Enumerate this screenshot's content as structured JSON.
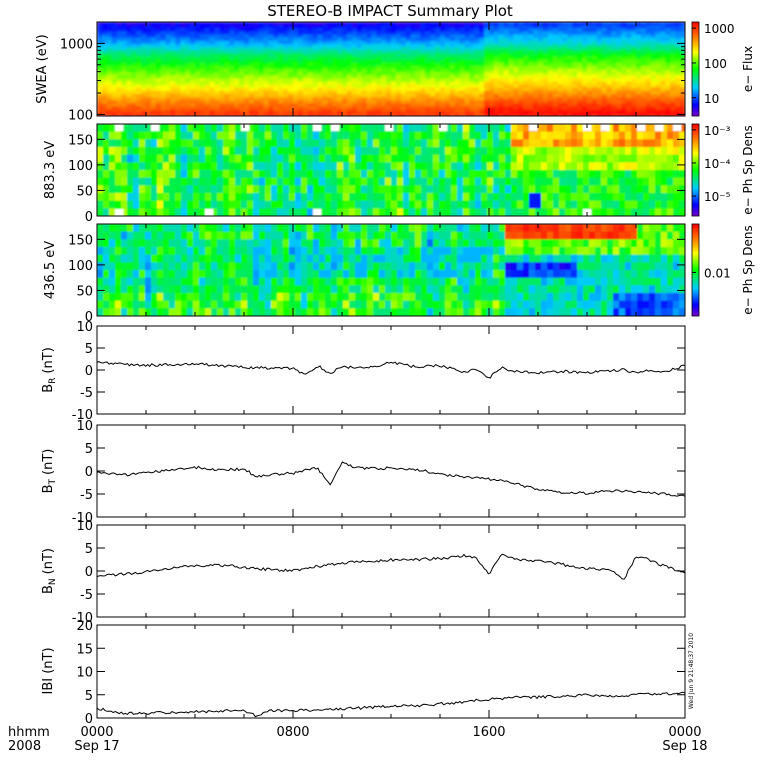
{
  "title": "STEREO-B IMPACT Summary Plot",
  "timestamp": "Wed Jun 9 21:48:37 2010",
  "x_axis": {
    "row1_label": "hhmm",
    "row2_label": "2008",
    "ticks": [
      {
        "hhmm": 0,
        "label": "0000",
        "date": "Sep 17"
      },
      {
        "hhmm": 800,
        "label": "0800",
        "date": ""
      },
      {
        "hhmm": 1600,
        "label": "1600",
        "date": ""
      },
      {
        "hhmm": 2400,
        "label": "0000",
        "date": "Sep 18"
      }
    ]
  },
  "panels": {
    "swea": {
      "ylabel": "SWEA (eV)",
      "ytick_labels": [
        "1000",
        "100"
      ],
      "colorbar_label": "e− Flux",
      "colorbar_ticks": [
        "1000",
        "100",
        "10"
      ]
    },
    "pad883": {
      "ylabel": "883.3 eV",
      "ytick_labels": [
        "150",
        "100",
        "50",
        "0"
      ],
      "colorbar_label": "e− Ph Sp Dens",
      "colorbar_ticks": [
        "10⁻³",
        "10⁻⁴",
        "10⁻⁵"
      ]
    },
    "pad436": {
      "ylabel": "436.5 eV",
      "ytick_labels": [
        "150",
        "100",
        "50",
        "0"
      ],
      "colorbar_label": "e− Ph Sp Dens",
      "colorbar_ticks": [
        "0.01"
      ]
    },
    "br": {
      "ylabel": "B",
      "sub": "R",
      "unit": "(nT)"
    },
    "bt": {
      "ylabel": "B",
      "sub": "T",
      "unit": "(nT)"
    },
    "bn": {
      "ylabel": "B",
      "sub": "N",
      "unit": "(nT)"
    },
    "bmag": {
      "ylabel": "IBI (nT)"
    }
  },
  "chart_data": [
    {
      "type": "heatmap",
      "name": "SWEA e− Flux",
      "y_scale": "log",
      "ylim": [
        95,
        2000
      ],
      "colorbar_scale": "log",
      "colorbar_range": [
        3,
        1500
      ],
      "energy_profile_log10_flux": [
        [
          100,
          3.0
        ],
        [
          150,
          2.7
        ],
        [
          250,
          2.3
        ],
        [
          400,
          2.0
        ],
        [
          700,
          1.6
        ],
        [
          1000,
          1.2
        ],
        [
          1500,
          0.9
        ],
        [
          2000,
          0.7
        ]
      ]
    },
    {
      "type": "heatmap",
      "name": "883.3 eV pitch-angle e− Ph Sp Dens",
      "ylim": [
        0,
        180
      ],
      "y_ticks": [
        0,
        50,
        100,
        150
      ],
      "colorbar_scale": "log",
      "colorbar_range": [
        2.5e-06,
        0.0015
      ]
    },
    {
      "type": "heatmap",
      "name": "436.5 eV pitch-angle e− Ph Sp Dens",
      "ylim": [
        0,
        180
      ],
      "y_ticks": [
        0,
        50,
        100,
        150
      ],
      "colorbar_scale": "log",
      "colorbar_range": [
        0.002,
        0.06
      ]
    },
    {
      "type": "line",
      "name": "BR",
      "ylim": [
        -10,
        10
      ],
      "y_ticks": [
        -10,
        -5,
        0,
        5,
        10
      ],
      "x_hhmm": [
        0,
        100,
        200,
        300,
        400,
        500,
        600,
        700,
        800,
        830,
        900,
        930,
        1000,
        1100,
        1200,
        1300,
        1400,
        1500,
        1530,
        1600,
        1630,
        1700,
        1800,
        1900,
        2000,
        2100,
        2130,
        2200,
        2230,
        2300,
        2400
      ],
      "y": [
        1.8,
        1.3,
        1.1,
        1.2,
        1.4,
        1.0,
        0.6,
        0.5,
        0.3,
        -1.2,
        1.0,
        -0.8,
        0.8,
        0.3,
        1.8,
        0.7,
        1.0,
        -0.4,
        0.2,
        -1.8,
        0.5,
        -0.3,
        -0.6,
        -0.3,
        -0.6,
        -0.2,
        0.1,
        -0.8,
        0.0,
        -0.7,
        1.0
      ]
    },
    {
      "type": "line",
      "name": "BT",
      "ylim": [
        -10,
        10
      ],
      "y_ticks": [
        -10,
        -5,
        0,
        5,
        10
      ],
      "x_hhmm": [
        0,
        100,
        200,
        300,
        400,
        500,
        600,
        630,
        700,
        800,
        900,
        930,
        1000,
        1030,
        1100,
        1200,
        1300,
        1400,
        1500,
        1600,
        1700,
        1800,
        1900,
        2000,
        2100,
        2200,
        2300,
        2400
      ],
      "y": [
        -0.2,
        -0.9,
        -0.4,
        0.2,
        0.8,
        0.3,
        0.4,
        -1.2,
        -0.8,
        -0.5,
        0.7,
        -3.0,
        1.8,
        0.8,
        0.5,
        0.6,
        0.4,
        -0.7,
        -1.3,
        -1.7,
        -2.6,
        -4.1,
        -4.6,
        -4.8,
        -4.3,
        -4.5,
        -5.0,
        -5.3
      ]
    },
    {
      "type": "line",
      "name": "BN",
      "ylim": [
        -10,
        10
      ],
      "y_ticks": [
        -10,
        -5,
        0,
        5,
        10
      ],
      "x_hhmm": [
        0,
        100,
        200,
        300,
        400,
        500,
        600,
        700,
        800,
        900,
        1000,
        1100,
        1200,
        1300,
        1400,
        1500,
        1530,
        1600,
        1630,
        1700,
        1800,
        1900,
        2000,
        2100,
        2130,
        2200,
        2230,
        2300,
        2400
      ],
      "y": [
        -1.2,
        -0.7,
        -0.2,
        0.6,
        1.2,
        1.3,
        0.8,
        0.3,
        0.1,
        1.0,
        1.8,
        2.0,
        2.4,
        2.5,
        2.7,
        3.4,
        2.8,
        -0.8,
        3.6,
        2.6,
        2.2,
        1.4,
        0.6,
        0.3,
        -2.0,
        3.2,
        2.6,
        1.4,
        -0.5
      ]
    },
    {
      "type": "line",
      "name": "|B|",
      "ylim": [
        0,
        20
      ],
      "y_ticks": [
        0,
        5,
        10,
        15,
        20
      ],
      "x_hhmm": [
        0,
        100,
        200,
        300,
        400,
        500,
        600,
        630,
        700,
        800,
        900,
        1000,
        1100,
        1200,
        1300,
        1400,
        1500,
        1600,
        1700,
        1800,
        1900,
        2000,
        2100,
        2200,
        2300,
        2400
      ],
      "y": [
        2.0,
        1.1,
        1.0,
        1.2,
        1.3,
        1.5,
        1.6,
        0.4,
        1.5,
        1.6,
        1.8,
        2.0,
        2.2,
        2.6,
        2.6,
        3.0,
        3.5,
        4.0,
        4.4,
        4.5,
        4.7,
        4.9,
        4.8,
        5.0,
        5.2,
        5.3
      ]
    }
  ]
}
